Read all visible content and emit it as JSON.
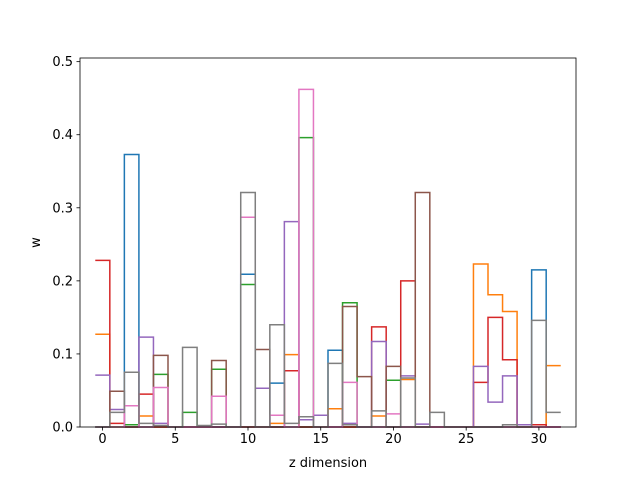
{
  "chart_data": {
    "type": "line",
    "style": "step",
    "title": "",
    "xlabel": "z dimension",
    "ylabel": "w",
    "xlim": [
      -1.55,
      32.55
    ],
    "ylim": [
      0,
      0.505
    ],
    "xticks": [
      0,
      5,
      10,
      15,
      20,
      25,
      30
    ],
    "xtick_labels": [
      "0",
      "5",
      "10",
      "15",
      "20",
      "25",
      "30"
    ],
    "yticks": [
      0.0,
      0.1,
      0.2,
      0.3,
      0.4,
      0.5
    ],
    "ytick_labels": [
      "0.0",
      "0.1",
      "0.2",
      "0.3",
      "0.4",
      "0.5"
    ],
    "grid": false,
    "legend": "none",
    "x": [
      0,
      1,
      2,
      3,
      4,
      5,
      6,
      7,
      8,
      9,
      10,
      11,
      12,
      13,
      14,
      15,
      16,
      17,
      18,
      19,
      20,
      21,
      22,
      23,
      24,
      25,
      26,
      27,
      28,
      29,
      30,
      31
    ],
    "series": [
      {
        "color": "#1f77b4",
        "values": [
          0.0,
          0.0,
          0.373,
          0.0,
          0.0,
          0.0,
          0.0,
          0.0,
          0.0,
          0.0,
          0.209,
          0.0,
          0.06,
          0.0,
          0.0,
          0.0,
          0.105,
          0.0,
          0.0,
          0.0,
          0.0,
          0.0,
          0.0,
          0.0,
          0.0,
          0.0,
          0.0,
          0.0,
          0.0,
          0.0,
          0.215,
          0.0
        ]
      },
      {
        "color": "#ff7f0e",
        "values": [
          0.127,
          0.0,
          0.0,
          0.015,
          0.0,
          0.0,
          0.0,
          0.0,
          0.0,
          0.0,
          0.0,
          0.0,
          0.005,
          0.099,
          0.0,
          0.0,
          0.025,
          0.0,
          0.0,
          0.015,
          0.0,
          0.065,
          0.0,
          0.0,
          0.0,
          0.0,
          0.223,
          0.181,
          0.158,
          0.0,
          0.0,
          0.084
        ]
      },
      {
        "color": "#2ca02c",
        "values": [
          0.0,
          0.0,
          0.003,
          0.0,
          0.072,
          0.0,
          0.02,
          0.0,
          0.079,
          0.0,
          0.195,
          0.0,
          0.0,
          0.0,
          0.396,
          0.0,
          0.0,
          0.17,
          0.0,
          0.0,
          0.064,
          0.0,
          0.0,
          0.0,
          0.0,
          0.0,
          0.0,
          0.0,
          0.0,
          0.0,
          0.0,
          0.0
        ]
      },
      {
        "color": "#d62728",
        "values": [
          0.228,
          0.005,
          0.0,
          0.045,
          0.0,
          0.0,
          0.0,
          0.0,
          0.0,
          0.0,
          0.0,
          0.0,
          0.0,
          0.077,
          0.0,
          0.0,
          0.0,
          0.0,
          0.0,
          0.137,
          0.0,
          0.2,
          0.0,
          0.0,
          0.0,
          0.0,
          0.061,
          0.15,
          0.092,
          0.0,
          0.003,
          0.0
        ]
      },
      {
        "color": "#9467bd",
        "values": [
          0.071,
          0.024,
          0.0,
          0.123,
          0.005,
          0.0,
          0.0,
          0.0,
          0.0,
          0.0,
          0.0,
          0.053,
          0.0,
          0.281,
          0.01,
          0.016,
          0.0,
          0.005,
          0.0,
          0.117,
          0.0,
          0.07,
          0.004,
          0.0,
          0.0,
          0.0,
          0.083,
          0.034,
          0.07,
          0.003,
          0.0,
          0.0
        ]
      },
      {
        "color": "#8c564b",
        "values": [
          0.0,
          0.049,
          0.0,
          0.0,
          0.098,
          0.0,
          0.0,
          0.0,
          0.091,
          0.0,
          0.0,
          0.106,
          0.0,
          0.0,
          0.0,
          0.0,
          0.0,
          0.165,
          0.069,
          0.0,
          0.083,
          0.0,
          0.321,
          0.0,
          0.0,
          0.0,
          0.0,
          0.0,
          0.0,
          0.0,
          0.0,
          0.0
        ]
      },
      {
        "color": "#e377c2",
        "values": [
          0.0,
          0.0,
          0.029,
          0.0,
          0.054,
          0.0,
          0.0,
          0.0,
          0.042,
          0.0,
          0.287,
          0.0,
          0.016,
          0.0,
          0.462,
          0.0,
          0.0,
          0.061,
          0.0,
          0.0,
          0.018,
          0.0,
          0.0,
          0.0,
          0.0,
          0.0,
          0.0,
          0.0,
          0.0,
          0.0,
          0.0,
          0.0
        ]
      },
      {
        "color": "#7f7f7f",
        "values": [
          0.0,
          0.02,
          0.075,
          0.005,
          0.002,
          0.0,
          0.109,
          0.002,
          0.004,
          0.0,
          0.321,
          0.0,
          0.14,
          0.005,
          0.014,
          0.0,
          0.087,
          0.003,
          0.0,
          0.022,
          0.0,
          0.067,
          0.0,
          0.02,
          0.0,
          0.0,
          0.0,
          0.0,
          0.003,
          0.0,
          0.146,
          0.02
        ]
      }
    ]
  }
}
